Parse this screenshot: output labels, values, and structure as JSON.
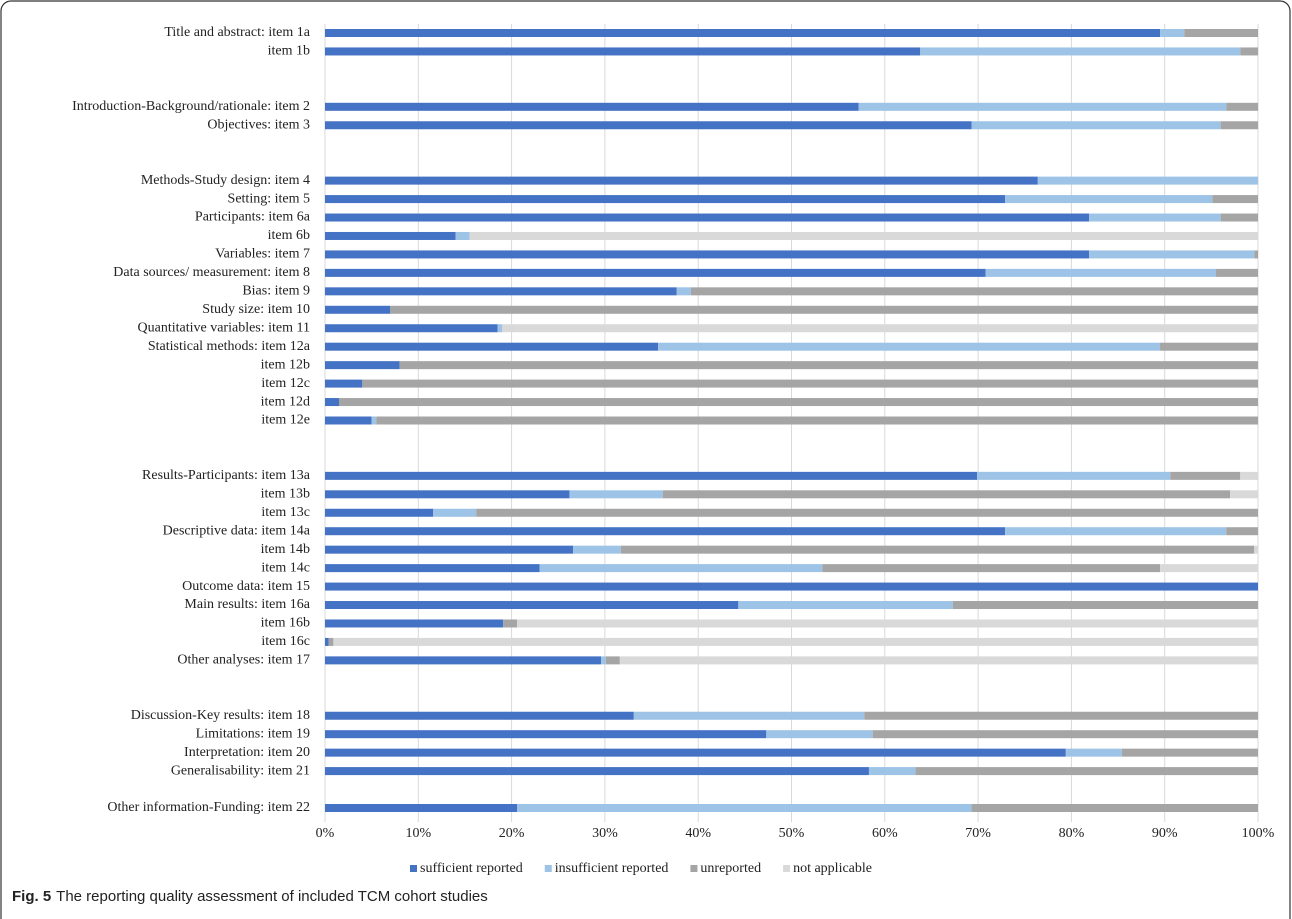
{
  "chart_data": {
    "type": "stacked-barh",
    "categories": [
      "Title and abstract: item 1a",
      "item 1b",
      null,
      null,
      "Introduction-Background/rationale: item 2",
      "Objectives: item 3",
      null,
      null,
      "Methods-Study design: item 4",
      "Setting: item 5",
      "Participants: item 6a",
      "item 6b",
      "Variables: item 7",
      "Data sources/ measurement: item 8",
      "Bias: item 9",
      "Study size: item 10",
      "Quantitative variables: item 11",
      "Statistical methods: item 12a",
      "item 12b",
      "item 12c",
      "item 12d",
      "item 12e",
      null,
      null,
      "Results-Participants: item 13a",
      "item 13b",
      "item 13c",
      "Descriptive data: item 14a",
      "item 14b",
      "item 14c",
      "Outcome data: item 15",
      "Main results: item 16a",
      "item 16b",
      "item 16c",
      "Other analyses: item 17",
      null,
      null,
      "Discussion-Key results: item 18",
      "Limitations: item 19",
      "Interpretation: item 20",
      "Generalisability: item 21",
      null,
      "Other information-Funding: item 22"
    ],
    "series": [
      {
        "name": "sufficient reported",
        "color": "#4472c4",
        "values": [
          89.5,
          63.8,
          null,
          null,
          57.2,
          69.3,
          null,
          null,
          76.4,
          72.9,
          81.9,
          14.0,
          81.9,
          70.8,
          37.7,
          7.0,
          18.5,
          35.7,
          8.0,
          4.0,
          1.5,
          5.0,
          null,
          null,
          69.9,
          26.2,
          11.6,
          72.9,
          26.6,
          23.0,
          100,
          44.3,
          19.1,
          0.4,
          29.6,
          null,
          null,
          33.1,
          47.3,
          79.4,
          58.3,
          null,
          20.6
        ]
      },
      {
        "name": "insufficient reported",
        "color": "#9dc3e6",
        "values": [
          2.6,
          34.3,
          null,
          null,
          39.4,
          26.7,
          null,
          null,
          23.6,
          22.2,
          14.1,
          1.5,
          17.7,
          24.7,
          1.5,
          0,
          0.5,
          53.8,
          0,
          0,
          0,
          0.5,
          null,
          null,
          20.7,
          10.0,
          4.6,
          23.7,
          5.1,
          30.3,
          0,
          23.0,
          0,
          0,
          0.5,
          null,
          null,
          24.7,
          11.4,
          6.0,
          5.0,
          null,
          48.7
        ]
      },
      {
        "name": "unreported",
        "color": "#a5a5a5",
        "values": [
          7.9,
          1.9,
          null,
          null,
          3.4,
          4.0,
          null,
          null,
          0,
          4.9,
          4.0,
          0,
          0.4,
          4.5,
          60.8,
          93.0,
          0,
          10.5,
          92.0,
          96.0,
          98.5,
          94.5,
          null,
          null,
          7.5,
          60.8,
          83.8,
          3.4,
          67.9,
          36.2,
          0,
          32.7,
          1.5,
          0.5,
          1.5,
          null,
          null,
          42.2,
          41.3,
          14.6,
          36.7,
          null,
          30.7
        ]
      },
      {
        "name": "not applicable",
        "color": "#d9d9d9",
        "values": [
          0,
          0,
          null,
          null,
          0,
          0,
          null,
          null,
          0,
          0,
          0,
          84.5,
          0,
          0,
          0,
          0,
          81.0,
          0,
          0,
          0,
          0,
          0,
          null,
          null,
          1.9,
          3.0,
          0,
          0,
          0.4,
          10.5,
          0,
          0,
          79.4,
          99.1,
          68.4,
          null,
          null,
          0,
          0,
          0,
          0,
          null,
          0
        ]
      }
    ],
    "xlim": [
      0,
      100
    ],
    "xticks": [
      {
        "value": 0,
        "label": "0%"
      },
      {
        "value": 10,
        "label": "10%"
      },
      {
        "value": 20,
        "label": "20%"
      },
      {
        "value": 30,
        "label": "30%"
      },
      {
        "value": 40,
        "label": "40%"
      },
      {
        "value": 50,
        "label": "50%"
      },
      {
        "value": 60,
        "label": "60%"
      },
      {
        "value": 70,
        "label": "70%"
      },
      {
        "value": 80,
        "label": "80%"
      },
      {
        "value": 90,
        "label": "90%"
      },
      {
        "value": 100,
        "label": "100%"
      }
    ],
    "grid": true,
    "legend": "bottom",
    "caption_label": "Fig. 5",
    "caption": "The reporting quality assessment of included TCM cohort studies"
  }
}
